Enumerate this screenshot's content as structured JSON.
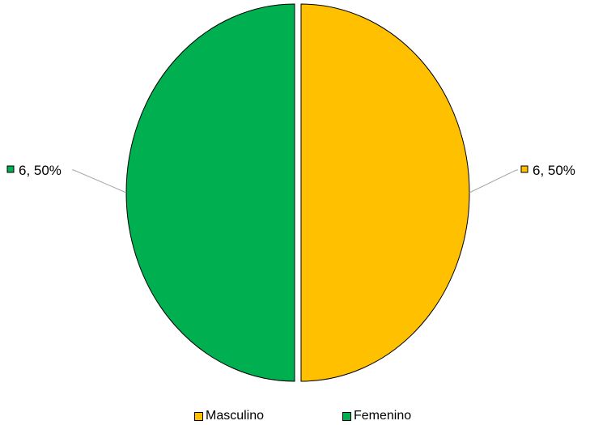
{
  "chart_data": {
    "type": "pie",
    "title": "",
    "categories": [
      "Masculino",
      "Femenino"
    ],
    "values": [
      6,
      6
    ],
    "percents": [
      "50%",
      "50%"
    ],
    "data_labels": [
      "6, 50%",
      "6, 50%"
    ],
    "colors": [
      "#FFC000",
      "#00B050"
    ],
    "legend": {
      "position": "bottom",
      "entries": [
        "Masculino",
        "Femenino"
      ]
    }
  }
}
